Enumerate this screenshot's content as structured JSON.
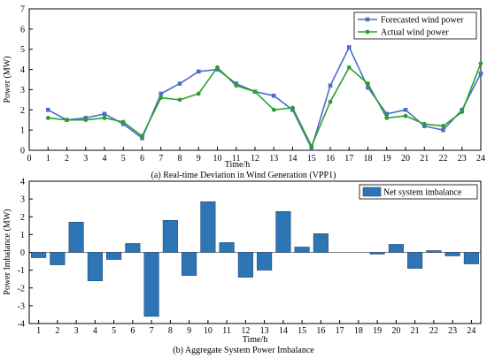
{
  "chart_data": [
    {
      "type": "line",
      "caption": "(a) Real-time Deviation in Wind Generation (VPP1)",
      "xlabel": "Time/h",
      "ylabel": "Power (MW)",
      "xlim": [
        0,
        24
      ],
      "ylim": [
        0,
        7
      ],
      "xticks": [
        "0",
        "1",
        "2",
        "3",
        "4",
        "5",
        "6",
        "7",
        "8",
        "9",
        "10",
        "11",
        "12",
        "13",
        "14",
        "15",
        "16",
        "17",
        "18",
        "19",
        "20",
        "21",
        "22",
        "23",
        "24"
      ],
      "yticks": [
        "0",
        "1",
        "2",
        "3",
        "4",
        "5",
        "6",
        "7"
      ],
      "legend_position": "top-right",
      "x": [
        1,
        2,
        3,
        4,
        5,
        6,
        7,
        8,
        9,
        10,
        11,
        12,
        13,
        14,
        15,
        16,
        17,
        18,
        19,
        20,
        21,
        22,
        23,
        24
      ],
      "series": [
        {
          "name": "Forecasted wind power",
          "color": "#4a6fc9",
          "marker": "square",
          "values": [
            2.0,
            1.5,
            1.6,
            1.8,
            1.3,
            0.6,
            2.8,
            3.3,
            3.9,
            4.0,
            3.3,
            2.9,
            2.7,
            2.0,
            0.1,
            3.2,
            5.1,
            3.1,
            1.8,
            2.0,
            1.2,
            1.0,
            2.0,
            3.8
          ]
        },
        {
          "name": "Actual wind power",
          "color": "#2ca02c",
          "marker": "circle",
          "values": [
            1.6,
            1.5,
            1.5,
            1.6,
            1.4,
            0.7,
            2.6,
            2.5,
            2.8,
            4.1,
            3.2,
            2.9,
            2.0,
            2.1,
            0.2,
            2.4,
            4.1,
            3.3,
            1.6,
            1.7,
            1.3,
            1.2,
            1.9,
            4.3
          ]
        }
      ]
    },
    {
      "type": "bar",
      "caption": "(b) Aggregate System Power Imbalance",
      "xlabel": "Time/h",
      "ylabel": "Power Imbalance (MW)",
      "ylim": [
        -4,
        4
      ],
      "yticks": [
        "4",
        "3",
        "2",
        "1",
        "0",
        "-1",
        "-2",
        "-3",
        "-4"
      ],
      "legend_position": "top-right",
      "categories": [
        "1",
        "2",
        "3",
        "4",
        "5",
        "6",
        "7",
        "8",
        "9",
        "10",
        "11",
        "12",
        "13",
        "14",
        "15",
        "16",
        "17",
        "18",
        "19",
        "20",
        "21",
        "22",
        "23",
        "24"
      ],
      "series": [
        {
          "name": "Net system imbalance",
          "color": "#2e75b6",
          "values": [
            -0.3,
            -0.7,
            1.7,
            -1.6,
            -0.4,
            0.5,
            -3.6,
            1.8,
            -1.3,
            2.85,
            0.55,
            -1.4,
            -1.0,
            2.3,
            0.3,
            1.05,
            0,
            0,
            -0.1,
            0.45,
            -0.9,
            0.1,
            -0.2,
            -0.65
          ]
        }
      ]
    }
  ]
}
